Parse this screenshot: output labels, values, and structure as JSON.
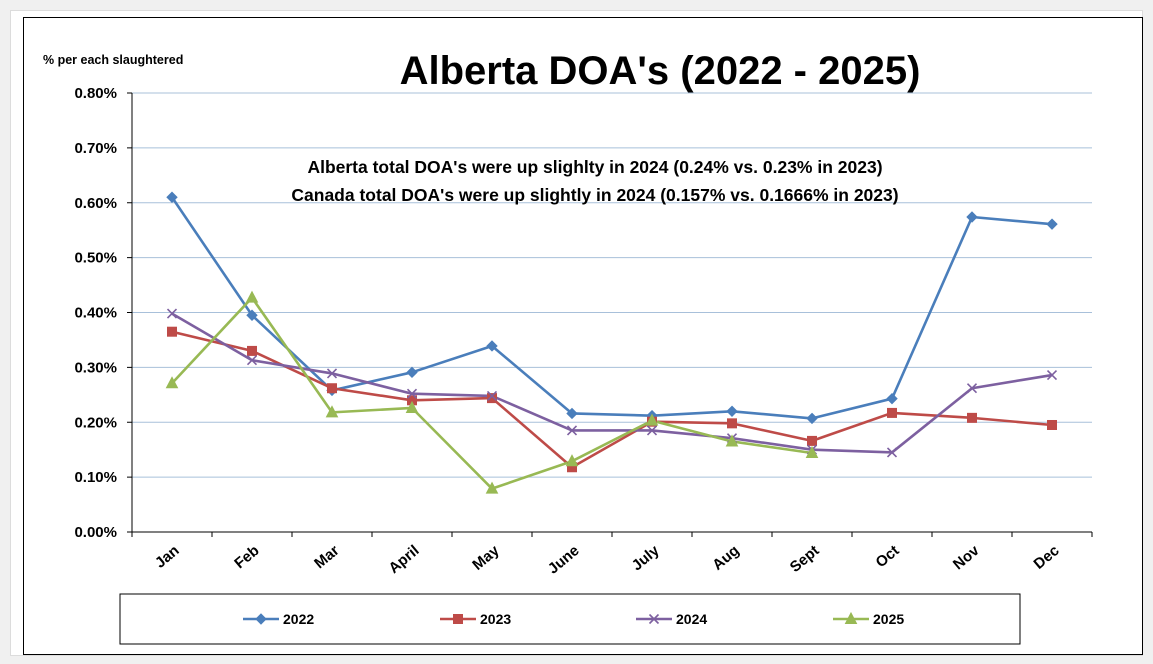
{
  "chart_data": {
    "type": "line",
    "title": "Alberta DOA's (2022 - 2025)",
    "ylabel": "% per each slaughtered",
    "xlabel": "",
    "ylim": [
      0,
      0.8
    ],
    "yticks": [
      0,
      0.1,
      0.2,
      0.3,
      0.4,
      0.5,
      0.6,
      0.7,
      0.8
    ],
    "ytick_labels": [
      "0.00%",
      "0.10%",
      "0.20%",
      "0.30%",
      "0.40%",
      "0.50%",
      "0.60%",
      "0.70%",
      "0.80%"
    ],
    "grid": true,
    "legend_position": "bottom",
    "categories": [
      "Jan",
      "Feb",
      "Mar",
      "April",
      "May",
      "June",
      "July",
      "Aug",
      "Sept",
      "Oct",
      "Nov",
      "Dec"
    ],
    "annotations": [
      "Alberta total DOA's were up slighlty  in 2024 (0.24%  vs. 0.23% in 2023)",
      "Canada total DOA's were up slightly in 2024 (0.157% vs. 0.1666% in 2023)"
    ],
    "series": [
      {
        "name": "2022",
        "color": "#4a7ebb",
        "marker": "diamond",
        "values": [
          0.61,
          0.395,
          0.258,
          0.291,
          0.339,
          0.216,
          0.212,
          0.22,
          0.207,
          0.243,
          0.574,
          0.561
        ]
      },
      {
        "name": "2023",
        "color": "#be4b48",
        "marker": "square",
        "values": [
          0.365,
          0.33,
          0.262,
          0.24,
          0.244,
          0.118,
          0.201,
          0.198,
          0.166,
          0.217,
          0.208,
          0.195
        ]
      },
      {
        "name": "2024",
        "color": "#7d60a0",
        "marker": "x",
        "values": [
          0.398,
          0.313,
          0.289,
          0.252,
          0.248,
          0.185,
          0.185,
          0.171,
          0.15,
          0.145,
          0.262,
          0.286
        ]
      },
      {
        "name": "2025",
        "color": "#98b954",
        "marker": "triangle",
        "values": [
          0.271,
          0.427,
          0.218,
          0.226,
          0.079,
          0.129,
          0.203,
          0.165,
          0.144,
          null,
          null,
          null
        ]
      }
    ]
  }
}
